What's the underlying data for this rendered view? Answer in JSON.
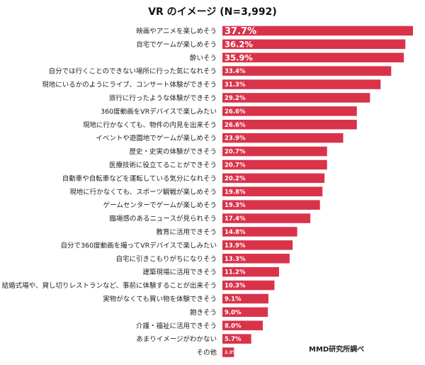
{
  "chart_data": {
    "type": "bar",
    "orientation": "horizontal",
    "title": "VR のイメージ (N=3,992)",
    "xlabel": "",
    "ylabel": "",
    "xlim": [
      0,
      40
    ],
    "grid": false,
    "legend": "none",
    "bar_color": "#d9334a",
    "categories": [
      "映画やアニメを楽しめそう",
      "自宅でゲームが楽しめそう",
      "酔いそう",
      "自分では行くことのできない場所に行った気になれそう",
      "現地にいるかのようにライブ、コンサート体験ができそう",
      "旅行に行ったような体験ができそう",
      "360度動画をVRデバイスで楽しみたい",
      "現地に行かなくても、物件の内見を出来そう",
      "イベントや遊園地でゲームが楽しめそう",
      "歴史・史実の体験ができそう",
      "医療技術に役立てることができそう",
      "自動車や自転車などを運転している気分になれそう",
      "現地に行かなくても、スポーツ観戦が楽しめそう",
      "ゲームセンターでゲームが楽しめそう",
      "臨場感のあるニュースが見られそう",
      "教育に活用できそう",
      "自分で360度動画を撮ってVRデバイスで楽しみたい",
      "自宅に引きこもりがちになりそう",
      "建築現場に活用できそう",
      "結婚式場や、貸し切りレストランなど、事前に体験することが出来そう",
      "実物がなくても買い物を体験できそう",
      "飽きそう",
      "介護・福祉に活用できそう",
      "あまりイメージがわかない",
      "その他"
    ],
    "values": [
      37.7,
      36.2,
      35.9,
      33.4,
      31.3,
      29.2,
      26.6,
      26.6,
      23.9,
      20.7,
      20.7,
      20.2,
      19.8,
      19.3,
      17.4,
      14.8,
      13.9,
      13.3,
      11.2,
      10.3,
      9.1,
      9.0,
      8.0,
      5.7,
      2.3
    ],
    "value_labels": [
      "37.7%",
      "36.2%",
      "35.9%",
      "33.4%",
      "31.3%",
      "29.2%",
      "26.6%",
      "26.6%",
      "23.9%",
      "20.7%",
      "20.7%",
      "20.2%",
      "19.8%",
      "19.3%",
      "17.4%",
      "14.8%",
      "13.9%",
      "13.3%",
      "11.2%",
      "10.3%",
      "9.1%",
      "9.0%",
      "8.0%",
      "5.7%",
      "2.3%"
    ]
  },
  "source": "MMD研究所調べ"
}
